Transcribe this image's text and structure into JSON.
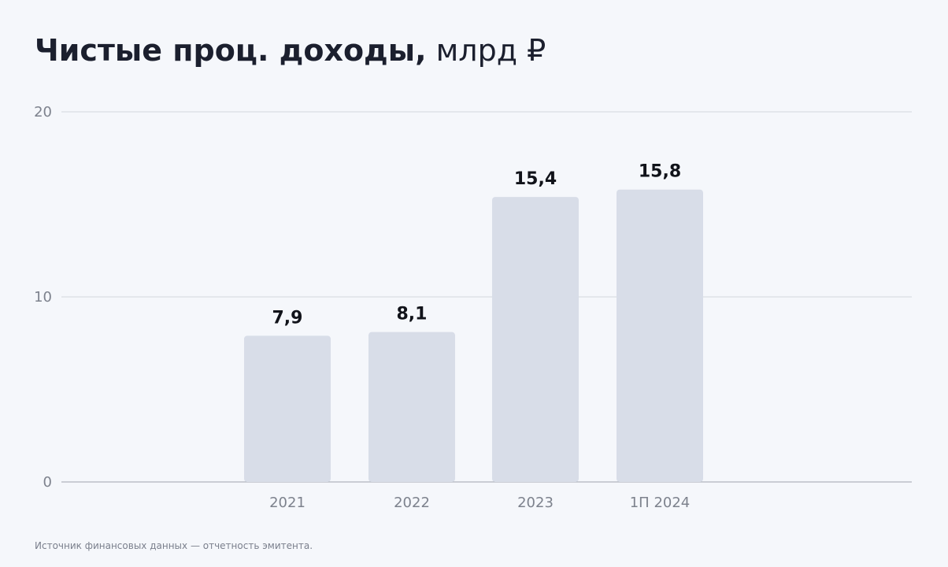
{
  "chart_data": {
    "type": "bar",
    "title": "Чистые проц. доходы,",
    "title_unit": "млрд ₽",
    "categories": [
      "2021",
      "2022",
      "2023",
      "1П 2024"
    ],
    "values": [
      7.9,
      8.1,
      15.4,
      15.8
    ],
    "value_labels": [
      "7,9",
      "8,1",
      "15,4",
      "15,8"
    ],
    "ylim": [
      0,
      20
    ],
    "yticks": [
      0,
      10,
      20
    ],
    "grid": true,
    "bar_color": "#d8dde8",
    "grid_color": "#d3d7de",
    "axis_color": "#9ea3ad",
    "xlabel": "",
    "ylabel": ""
  },
  "footer": {
    "source": "Источник финансовых данных — отчетность эмитента."
  }
}
